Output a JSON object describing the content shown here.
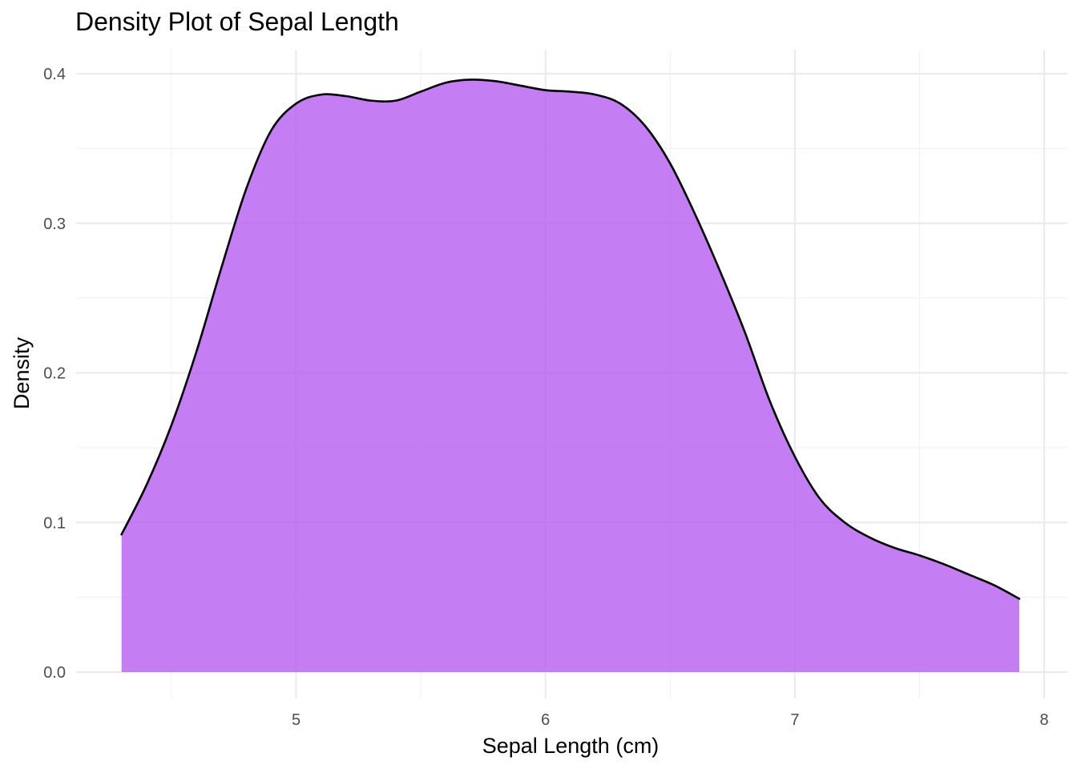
{
  "chart_data": {
    "type": "area",
    "title": "Density Plot of Sepal Length",
    "xlabel": "Sepal Length (cm)",
    "ylabel": "Density",
    "xlim": [
      4.18,
      8.0
    ],
    "ylim": [
      0.0,
      0.4
    ],
    "x_ticks": [
      5,
      6,
      7,
      8
    ],
    "y_ticks": [
      0.0,
      0.1,
      0.2,
      0.3,
      0.4
    ],
    "x_tick_labels": [
      "5",
      "6",
      "7",
      "8"
    ],
    "y_tick_labels": [
      "0.0",
      "0.1",
      "0.2",
      "0.3",
      "0.4"
    ],
    "grid": true,
    "fill_color": "#b75cf0",
    "fill_opacity": 0.8,
    "line_color": "#000000",
    "series": [
      {
        "x": [
          4.3,
          4.4,
          4.5,
          4.6,
          4.7,
          4.8,
          4.9,
          5.0,
          5.1,
          5.2,
          5.3,
          5.4,
          5.5,
          5.6,
          5.7,
          5.8,
          5.9,
          6.0,
          6.1,
          6.2,
          6.3,
          6.4,
          6.5,
          6.6,
          6.7,
          6.8,
          6.9,
          7.0,
          7.1,
          7.2,
          7.3,
          7.4,
          7.5,
          7.6,
          7.7,
          7.8,
          7.9
        ],
        "y": [
          0.092,
          0.125,
          0.165,
          0.214,
          0.27,
          0.323,
          0.362,
          0.38,
          0.386,
          0.385,
          0.382,
          0.382,
          0.388,
          0.394,
          0.396,
          0.395,
          0.392,
          0.389,
          0.388,
          0.386,
          0.38,
          0.365,
          0.34,
          0.306,
          0.268,
          0.227,
          0.181,
          0.144,
          0.116,
          0.1,
          0.09,
          0.083,
          0.078,
          0.072,
          0.065,
          0.058,
          0.049
        ]
      }
    ]
  }
}
